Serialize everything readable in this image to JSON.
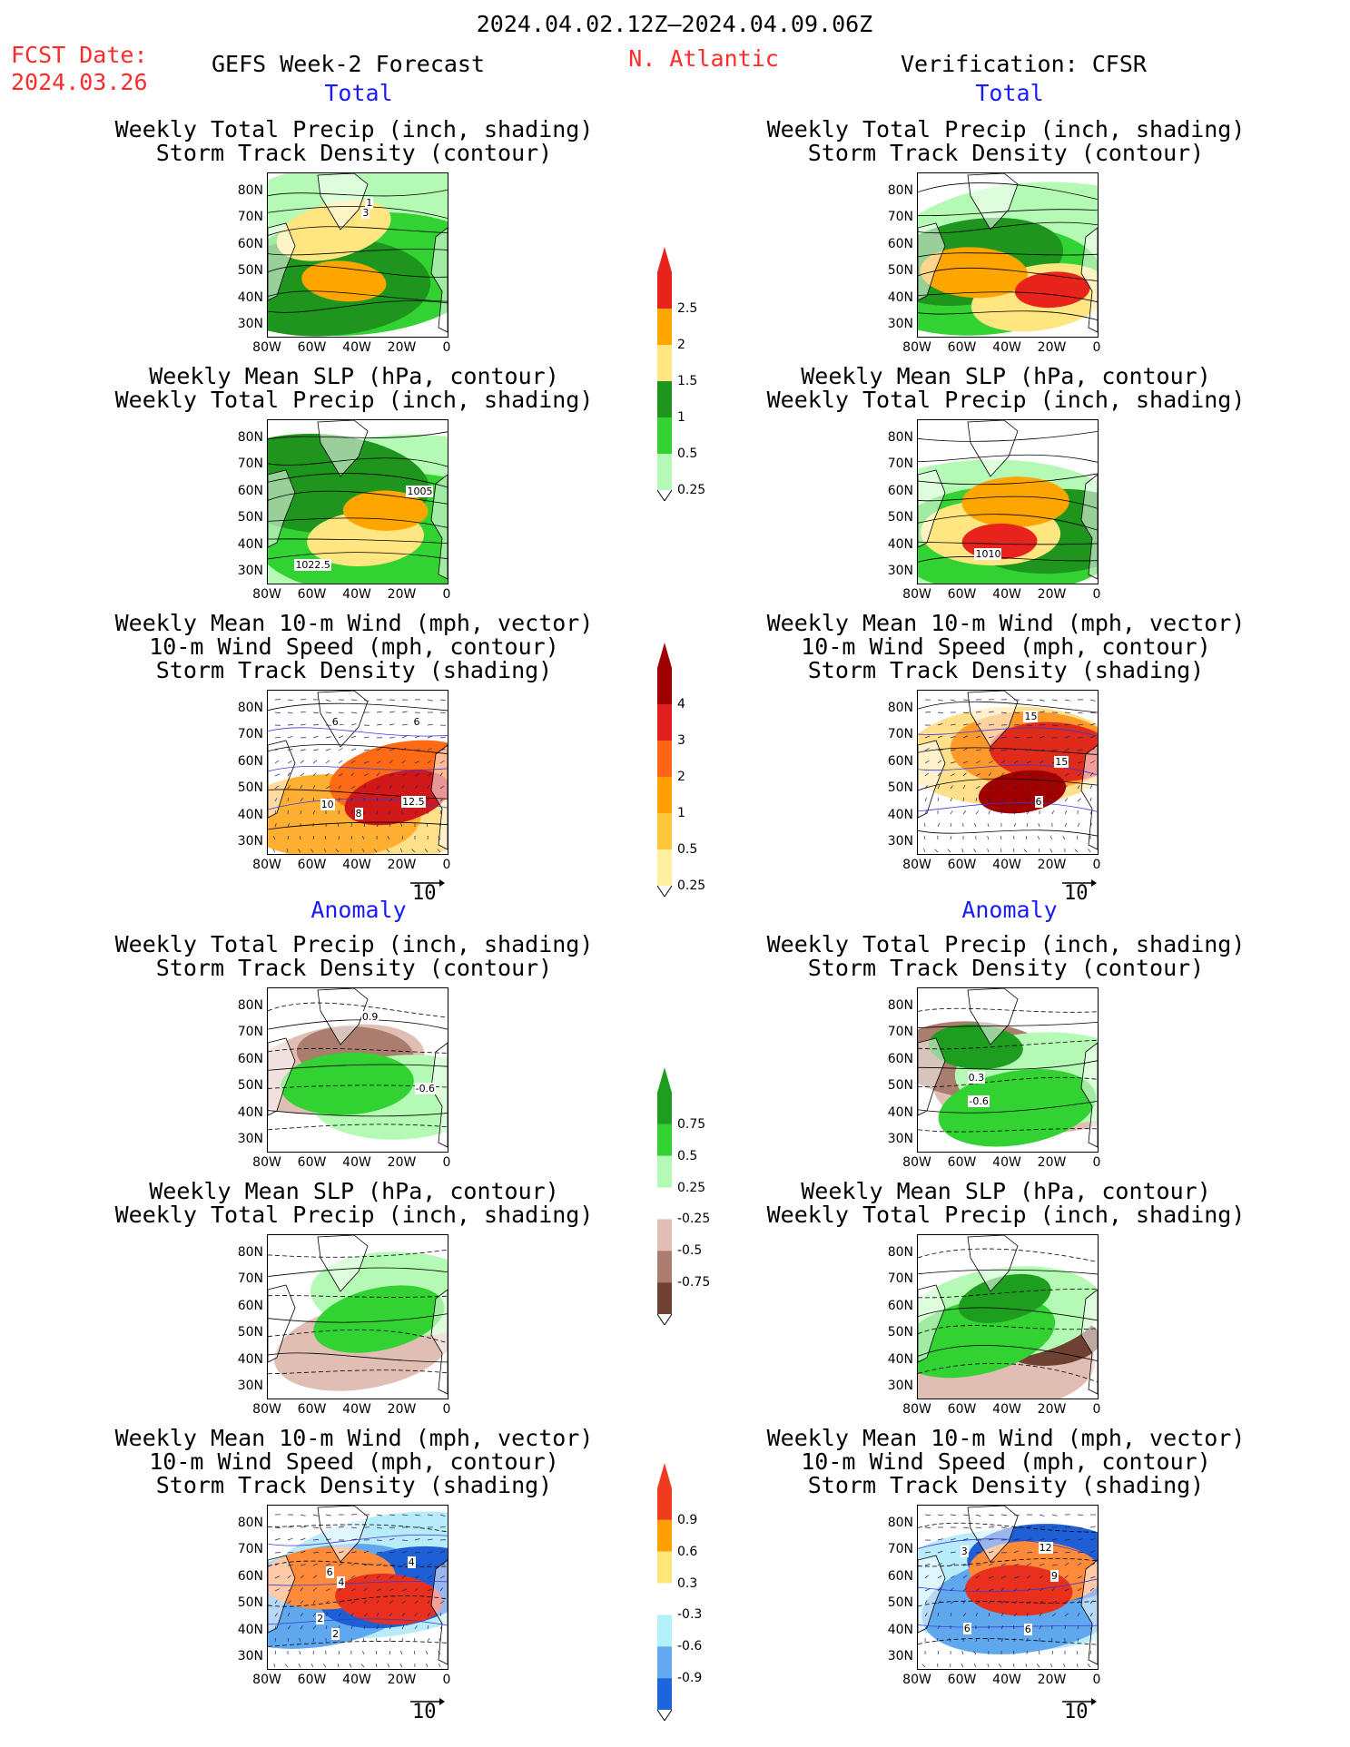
{
  "header": {
    "period": "2024.04.02.12Z–2024.04.09.06Z",
    "fcst_date_label": "FCST Date:",
    "fcst_date_value": "2024.03.26",
    "left_title": "GEFS Week-2 Forecast",
    "region": "N. Atlantic",
    "right_title": "Verification: CFSR"
  },
  "sections": {
    "total": "Total",
    "anomaly": "Anomaly"
  },
  "panel_titles": {
    "precip_track": [
      "Weekly Total Precip (inch, shading)",
      "Storm Track Density (contour)"
    ],
    "slp_precip": [
      "Weekly Mean SLP (hPa, contour)",
      "Weekly Total Precip (inch, shading)"
    ],
    "wind_track": [
      "Weekly Mean 10-m Wind (mph, vector)",
      "10-m Wind Speed (mph, contour)",
      "Storm Track Density (shading)"
    ]
  },
  "axes": {
    "lat_labels": [
      "80N",
      "70N",
      "60N",
      "50N",
      "40N",
      "30N"
    ],
    "lon_labels": [
      "80W",
      "60W",
      "40W",
      "20W",
      "0"
    ]
  },
  "vector_ref": "10",
  "colorbars": {
    "precip_total": {
      "labels": [
        "2.5",
        "2",
        "1.5",
        "1",
        "0.5",
        "0.25"
      ],
      "colors": [
        "#e8231c",
        "#ffa500",
        "#ffe680",
        "#1e961e",
        "#32d232",
        "#b4fab4"
      ]
    },
    "track_total": {
      "labels": [
        "4",
        "3",
        "2",
        "1",
        "0.5",
        "0.25"
      ],
      "colors": [
        "#a00000",
        "#e01e1e",
        "#ff6414",
        "#ffa000",
        "#ffc83c",
        "#fff0a0"
      ]
    },
    "precip_anom": {
      "labels": [
        "0.75",
        "0.5",
        "0.25",
        "-0.25",
        "-0.5",
        "-0.75"
      ],
      "colors": [
        "#1e9e1e",
        "#32d232",
        "#b4fab4",
        "#ffffff",
        "#e1beb4",
        "#aa7d6e",
        "#6e4132"
      ]
    },
    "track_anom": {
      "labels": [
        "0.9",
        "0.6",
        "0.3",
        "-0.3",
        "-0.6",
        "-0.9"
      ],
      "colors": [
        "#f03c1e",
        "#ffa000",
        "#ffe678",
        "#ffffff",
        "#b4f0fa",
        "#64aaf0",
        "#1e64dc"
      ]
    }
  },
  "contour_labels": {
    "gefs_precip_total": [
      "3",
      "1"
    ],
    "gefs_slp_total": [
      "1022.5",
      "1005"
    ],
    "gefs_wind_total": [
      "8",
      "10",
      "6",
      "6",
      "12.5"
    ],
    "cfsr_slp_total": [
      "1010"
    ],
    "cfsr_wind_total": [
      "6",
      "15",
      "15"
    ],
    "gefs_precip_anom": [
      "-0.6",
      "0.9"
    ],
    "cfsr_precip_anom": [
      "0.3",
      "-0.6"
    ],
    "gefs_wind_anom": [
      "4",
      "2",
      "2",
      "4",
      "6"
    ],
    "cfsr_wind_anom": [
      "3",
      "9",
      "6",
      "12",
      "6"
    ]
  }
}
